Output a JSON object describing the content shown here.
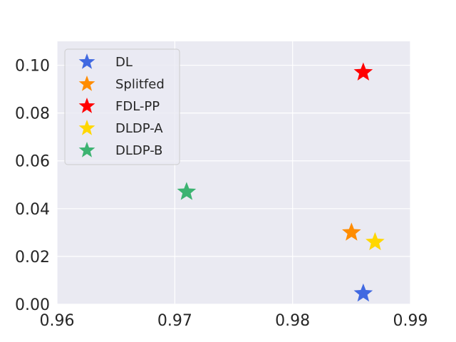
{
  "chart_data": {
    "type": "scatter",
    "title": "",
    "xlabel": "",
    "ylabel": "",
    "xlim": [
      0.96,
      0.99
    ],
    "ylim": [
      0.0,
      0.11
    ],
    "x_ticks": [
      "0.96",
      "0.97",
      "0.98",
      "0.99"
    ],
    "y_ticks": [
      "0.00",
      "0.02",
      "0.04",
      "0.06",
      "0.08",
      "0.10"
    ],
    "grid": true,
    "marker": "star",
    "legend_position": "top-left",
    "series": [
      {
        "name": "DL",
        "color": "#4169E1",
        "x": 0.986,
        "y": 0.0045
      },
      {
        "name": "Splitfed",
        "color": "#FF8C00",
        "x": 0.985,
        "y": 0.03
      },
      {
        "name": "FDL-PP",
        "color": "#FF0000",
        "x": 0.986,
        "y": 0.097
      },
      {
        "name": "DLDP-A",
        "color": "#FFD700",
        "x": 0.987,
        "y": 0.026
      },
      {
        "name": "DLDP-B",
        "color": "#3CB371",
        "x": 0.971,
        "y": 0.047
      }
    ]
  }
}
